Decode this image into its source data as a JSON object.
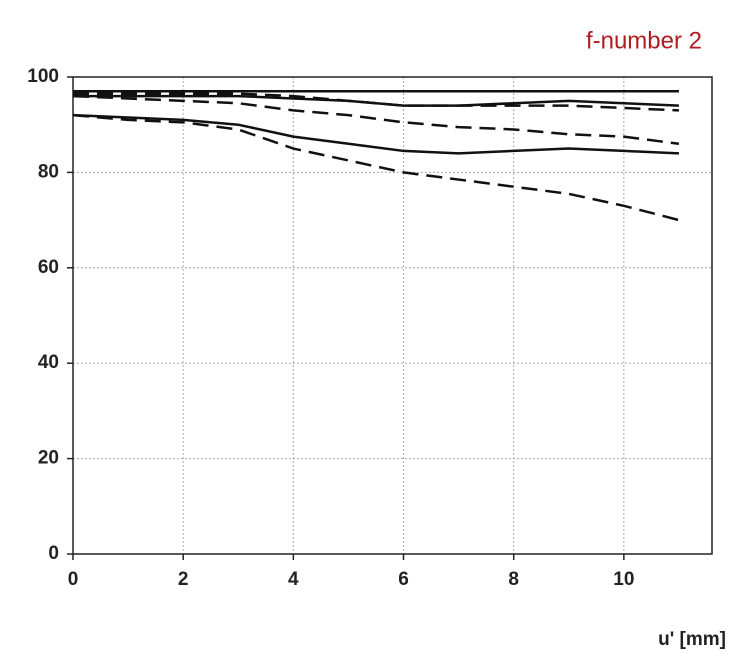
{
  "chart_data": {
    "type": "line",
    "title": "f-number 2",
    "x_label": "u' [mm]",
    "x": [
      0,
      1,
      2,
      3,
      4,
      5,
      6,
      7,
      8,
      9,
      10,
      11
    ],
    "series": [
      {
        "color": "#111111",
        "style": "solid",
        "values": [
          97,
          97,
          97,
          97,
          97,
          97,
          97,
          97,
          97,
          97,
          97,
          97
        ]
      },
      {
        "color": "#111111",
        "style": "dashed",
        "values": [
          96.5,
          96.5,
          96.5,
          96.5,
          96,
          95,
          94,
          94,
          94,
          94,
          93.5,
          93
        ]
      },
      {
        "color": "#111111",
        "style": "solid",
        "values": [
          96,
          96,
          96,
          96,
          95.5,
          95,
          94,
          94,
          94.5,
          95,
          94.5,
          94
        ]
      },
      {
        "color": "#111111",
        "style": "dashed",
        "values": [
          96,
          95.5,
          95,
          94.5,
          93,
          92,
          90.5,
          89.5,
          89,
          88,
          87.5,
          86
        ]
      },
      {
        "color": "#111111",
        "style": "solid",
        "values": [
          92,
          91.5,
          91,
          90,
          87.5,
          86,
          84.5,
          84,
          84.5,
          85,
          84.5,
          84
        ]
      },
      {
        "color": "#111111",
        "style": "dashed",
        "values": [
          92,
          91,
          90.5,
          89,
          85,
          82.5,
          80,
          78.5,
          77,
          75.5,
          73,
          70
        ]
      }
    ],
    "xlim": [
      0,
      11.6
    ],
    "xticks": [
      0,
      2,
      4,
      6,
      8,
      10
    ],
    "ylim": [
      0,
      100
    ],
    "yticks": [
      0,
      20,
      40,
      60,
      80,
      100
    ],
    "grid": true
  }
}
